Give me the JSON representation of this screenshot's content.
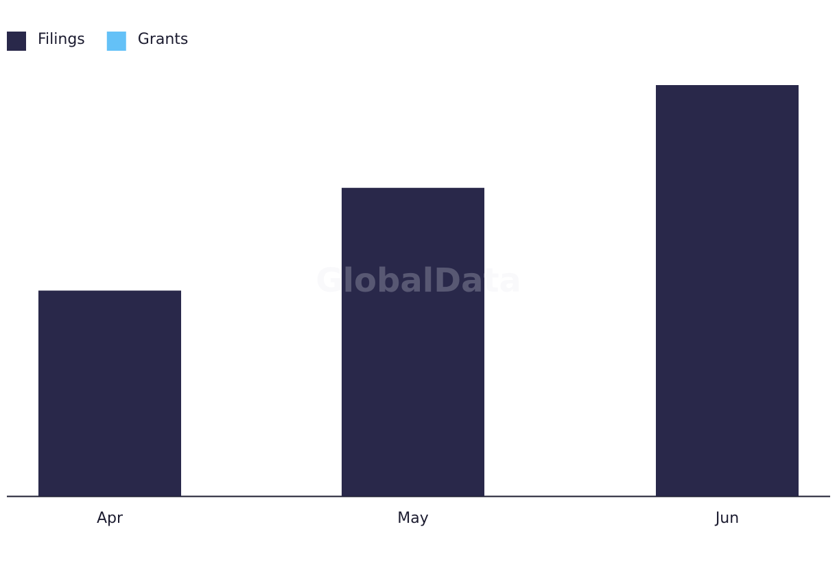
{
  "chart_data": {
    "type": "bar",
    "watermark": "GlobalData",
    "categories": [
      "Apr",
      "May",
      "Jun"
    ],
    "series": [
      {
        "name": "Filings",
        "color": "#29284a",
        "values": [
          2,
          3,
          4
        ]
      },
      {
        "name": "Grants",
        "color": "#64c1f7",
        "values": [
          0,
          0,
          0
        ]
      }
    ],
    "ylim": [
      0,
      4
    ],
    "legend": "top-left"
  }
}
